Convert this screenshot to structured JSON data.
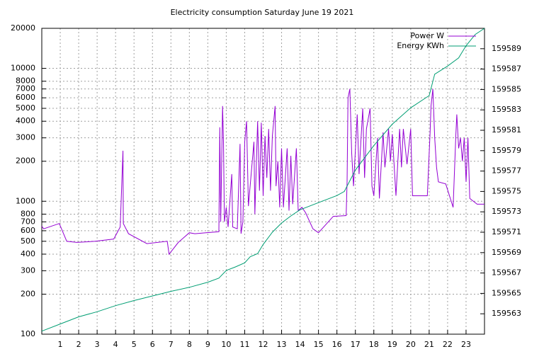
{
  "chart_data": {
    "type": "line",
    "title": "Electricity consumption Saturday June 19 2021",
    "xlim": [
      0,
      24
    ],
    "xticks": [
      1,
      2,
      3,
      4,
      5,
      6,
      7,
      8,
      9,
      10,
      11,
      12,
      13,
      14,
      15,
      16,
      17,
      18,
      19,
      20,
      21,
      22,
      23
    ],
    "ylim": [
      100,
      20000
    ],
    "log_y": true,
    "yticks": [
      100,
      200,
      300,
      400,
      500,
      600,
      700,
      800,
      1000,
      2000,
      3000,
      4000,
      5000,
      6000,
      7000,
      8000,
      10000,
      20000
    ],
    "y2lim": [
      159561,
      159591
    ],
    "y2ticks": [
      159563,
      159565,
      159567,
      159569,
      159571,
      159573,
      159575,
      159577,
      159579,
      159581,
      159583,
      159585,
      159587,
      159589
    ],
    "grid": true,
    "legend": "top-right",
    "series": [
      {
        "name": "Power W",
        "color": "#9400d3",
        "x": [
          0,
          0.1,
          0.95,
          1.35,
          1.9,
          2.9,
          3.9,
          4.25,
          4.4,
          4.42,
          4.7,
          5.7,
          6.8,
          6.9,
          7.4,
          8.0,
          8.3,
          8.9,
          9.6,
          9.65,
          9.7,
          9.8,
          9.85,
          9.9,
          10.0,
          10.1,
          10.3,
          10.35,
          10.6,
          10.75,
          10.8,
          10.9,
          11.0,
          11.1,
          11.2,
          11.5,
          11.55,
          11.7,
          11.8,
          11.9,
          12.0,
          12.1,
          12.2,
          12.3,
          12.4,
          12.5,
          12.65,
          12.7,
          12.8,
          12.9,
          13.0,
          13.1,
          13.3,
          13.4,
          13.5,
          13.6,
          13.8,
          13.9,
          14.1,
          14.3,
          14.7,
          15.0,
          15.8,
          16.5,
          16.55,
          16.6,
          16.7,
          16.8,
          16.9,
          17.1,
          17.2,
          17.4,
          17.5,
          17.6,
          17.8,
          17.9,
          18.0,
          18.2,
          18.3,
          18.5,
          18.6,
          18.8,
          18.9,
          19.0,
          19.2,
          19.4,
          19.5,
          19.6,
          19.8,
          20.0,
          20.1,
          20.9,
          21.05,
          21.1,
          21.2,
          21.3,
          21.4,
          21.5,
          21.9,
          22.3,
          22.45,
          22.5,
          22.6,
          22.7,
          22.8,
          22.9,
          23.0,
          23.1,
          23.2,
          23.6,
          24
        ],
        "values": [
          650,
          620,
          680,
          500,
          490,
          500,
          520,
          640,
          2400,
          680,
          570,
          480,
          500,
          400,
          490,
          580,
          570,
          580,
          590,
          3600,
          700,
          5200,
          2800,
          700,
          900,
          640,
          1600,
          640,
          620,
          2700,
          570,
          700,
          2800,
          4000,
          920,
          2800,
          800,
          4000,
          1200,
          3900,
          1100,
          3100,
          1500,
          3500,
          1200,
          3100,
          5200,
          1300,
          2000,
          900,
          2500,
          900,
          2500,
          850,
          2200,
          950,
          2500,
          850,
          900,
          820,
          620,
          580,
          770,
          780,
          1400,
          6000,
          7000,
          2300,
          1300,
          4500,
          1600,
          5000,
          1500,
          3500,
          5000,
          1300,
          1100,
          3000,
          1050,
          3300,
          1800,
          3500,
          2000,
          3200,
          1100,
          3500,
          1800,
          3500,
          1900,
          3500,
          1100,
          1100,
          3300,
          5200,
          7000,
          3000,
          1800,
          1400,
          1350,
          900,
          3200,
          4500,
          2500,
          3000,
          2000,
          3000,
          1400,
          3000,
          1050,
          950,
          950
        ]
      },
      {
        "name": "Energy KWh",
        "color": "#009e73",
        "axis": "y2",
        "x": [
          0,
          1,
          2,
          3,
          4,
          5,
          6,
          7,
          8,
          9,
          9.6,
          10,
          10.5,
          11,
          11.3,
          11.7,
          12,
          12.5,
          13,
          13.5,
          14,
          15,
          16,
          16.4,
          17,
          17.5,
          18,
          19,
          20,
          21,
          21.3,
          22,
          22.6,
          23,
          23.5,
          24
        ],
        "values": [
          159561.3,
          159562,
          159562.7,
          159563.2,
          159563.8,
          159564.3,
          159564.75,
          159565.2,
          159565.6,
          159566.1,
          159566.5,
          159567.25,
          159567.6,
          159568,
          159568.6,
          159568.9,
          159569.8,
          159571,
          159571.9,
          159572.6,
          159573.2,
          159573.9,
          159574.6,
          159575,
          159577.1,
          159578.3,
          159579.5,
          159581.6,
          159583.2,
          159584.4,
          159586.5,
          159587.3,
          159588.1,
          159589.3,
          159590.4,
          159591
        ]
      }
    ]
  }
}
